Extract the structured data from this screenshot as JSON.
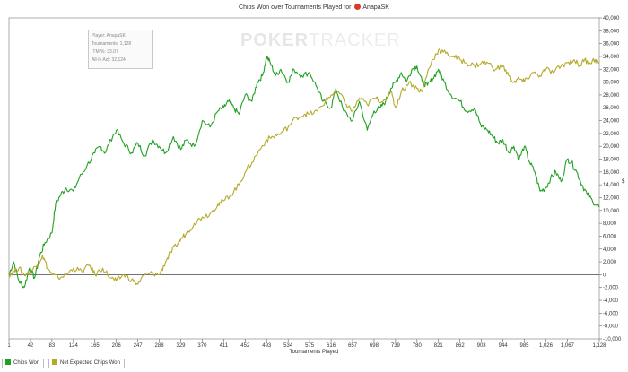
{
  "title_prefix": "Chips Won over Tournaments Played for",
  "player_name": "AnapaSK",
  "watermark": {
    "bold": "POKER",
    "light": "TRACKER"
  },
  "info": {
    "player": "Player: AnapaSK",
    "tournaments": "Tournaments: 1,128",
    "itm": "ITM %: 33.07",
    "allin": "All-In Adj: 32,124"
  },
  "legend": {
    "chips_won": "Chips Won",
    "net_expected": "Net Expected Chips Won"
  },
  "colors": {
    "chips_won": "#22a023",
    "net_expected": "#b5a92b",
    "zero_line": "#444444"
  },
  "chart_data": {
    "type": "line",
    "xlabel": "Tournaments Played",
    "ylabel": "$",
    "xlim": [
      1,
      1128
    ],
    "ylim": [
      -10000,
      40000
    ],
    "x_ticks": [
      1,
      42,
      83,
      124,
      165,
      206,
      247,
      288,
      329,
      370,
      411,
      452,
      493,
      534,
      575,
      616,
      657,
      698,
      739,
      780,
      821,
      862,
      903,
      944,
      985,
      1026,
      1067,
      1128
    ],
    "x_tick_labels": [
      "1",
      "42",
      "83",
      "124",
      "165",
      "206",
      "247",
      "288",
      "329",
      "370",
      "411",
      "452",
      "493",
      "534",
      "575",
      "616",
      "657",
      "698",
      "739",
      "780",
      "821",
      "862",
      "903",
      "944",
      "985",
      "1,026",
      "1,067",
      "1,128"
    ],
    "y_ticks": [
      -10000,
      -8000,
      -6000,
      -4000,
      -2000,
      0,
      2000,
      4000,
      6000,
      8000,
      10000,
      12000,
      14000,
      16000,
      18000,
      20000,
      22000,
      24000,
      26000,
      28000,
      30000,
      32000,
      34000,
      36000,
      38000,
      40000
    ],
    "y_tick_labels": [
      "-10,000",
      "-8,000",
      "-6,000",
      "-4,000",
      "-2,000",
      "0",
      "2,000",
      "4,000",
      "6,000",
      "8,000",
      "10,000",
      "12,000",
      "14,000",
      "16,000",
      "18,000",
      "20,000",
      "22,000",
      "24,000",
      "26,000",
      "28,000",
      "30,000",
      "32,000",
      "34,000",
      "36,000",
      "38,000",
      "40,000"
    ],
    "series": [
      {
        "name": "Chips Won",
        "color": "#22a023",
        "points": [
          [
            1,
            0
          ],
          [
            10,
            2000
          ],
          [
            20,
            -1000
          ],
          [
            30,
            -2000
          ],
          [
            40,
            1000
          ],
          [
            50,
            -500
          ],
          [
            60,
            3000
          ],
          [
            70,
            5000
          ],
          [
            83,
            6500
          ],
          [
            90,
            11000
          ],
          [
            100,
            12500
          ],
          [
            110,
            13500
          ],
          [
            124,
            13000
          ],
          [
            135,
            15000
          ],
          [
            150,
            17000
          ],
          [
            165,
            19000
          ],
          [
            175,
            20000
          ],
          [
            185,
            19000
          ],
          [
            195,
            21000
          ],
          [
            206,
            22500
          ],
          [
            220,
            20500
          ],
          [
            235,
            19000
          ],
          [
            247,
            20500
          ],
          [
            260,
            18500
          ],
          [
            275,
            21000
          ],
          [
            288,
            20000
          ],
          [
            300,
            19000
          ],
          [
            315,
            21500
          ],
          [
            329,
            19500
          ],
          [
            340,
            21000
          ],
          [
            355,
            20000
          ],
          [
            370,
            24000
          ],
          [
            385,
            23000
          ],
          [
            400,
            25500
          ],
          [
            411,
            26000
          ],
          [
            420,
            27000
          ],
          [
            430,
            26000
          ],
          [
            440,
            25000
          ],
          [
            452,
            28000
          ],
          [
            465,
            27000
          ],
          [
            475,
            30000
          ],
          [
            485,
            31000
          ],
          [
            493,
            34000
          ],
          [
            500,
            33000
          ],
          [
            510,
            31000
          ],
          [
            520,
            32000
          ],
          [
            534,
            30000
          ],
          [
            545,
            32000
          ],
          [
            560,
            31000
          ],
          [
            575,
            31500
          ],
          [
            590,
            29000
          ],
          [
            600,
            27000
          ],
          [
            616,
            26000
          ],
          [
            625,
            29000
          ],
          [
            640,
            25500
          ],
          [
            657,
            24000
          ],
          [
            670,
            27000
          ],
          [
            685,
            22500
          ],
          [
            698,
            25500
          ],
          [
            710,
            26000
          ],
          [
            720,
            27000
          ],
          [
            730,
            29000
          ],
          [
            739,
            30000
          ],
          [
            750,
            31500
          ],
          [
            760,
            30000
          ],
          [
            770,
            32000
          ],
          [
            780,
            32500
          ],
          [
            790,
            30000
          ],
          [
            800,
            29500
          ],
          [
            810,
            30500
          ],
          [
            821,
            32000
          ],
          [
            832,
            30000
          ],
          [
            845,
            28000
          ],
          [
            862,
            27000
          ],
          [
            875,
            25500
          ],
          [
            890,
            26000
          ],
          [
            903,
            23000
          ],
          [
            915,
            22500
          ],
          [
            925,
            21500
          ],
          [
            935,
            20500
          ],
          [
            944,
            21000
          ],
          [
            955,
            19000
          ],
          [
            965,
            20000
          ],
          [
            975,
            18000
          ],
          [
            985,
            20000
          ],
          [
            995,
            17500
          ],
          [
            1005,
            16000
          ],
          [
            1015,
            13000
          ],
          [
            1026,
            13500
          ],
          [
            1035,
            15000
          ],
          [
            1045,
            16000
          ],
          [
            1055,
            14500
          ],
          [
            1067,
            18000
          ],
          [
            1075,
            17500
          ],
          [
            1085,
            16000
          ],
          [
            1095,
            14000
          ],
          [
            1105,
            12500
          ],
          [
            1115,
            11500
          ],
          [
            1128,
            10500
          ]
        ]
      },
      {
        "name": "Net Expected Chips Won",
        "color": "#b5a92b",
        "points": [
          [
            1,
            0
          ],
          [
            10,
            500
          ],
          [
            20,
            1000
          ],
          [
            30,
            0
          ],
          [
            42,
            500
          ],
          [
            55,
            1500
          ],
          [
            65,
            3000
          ],
          [
            75,
            1000
          ],
          [
            83,
            0
          ],
          [
            95,
            -500
          ],
          [
            110,
            0
          ],
          [
            124,
            1000
          ],
          [
            140,
            500
          ],
          [
            155,
            1500
          ],
          [
            165,
            0
          ],
          [
            180,
            1000
          ],
          [
            195,
            -500
          ],
          [
            206,
            -1000
          ],
          [
            220,
            0
          ],
          [
            235,
            -800
          ],
          [
            247,
            -1500
          ],
          [
            260,
            0
          ],
          [
            275,
            200
          ],
          [
            288,
            0
          ],
          [
            300,
            2000
          ],
          [
            310,
            3500
          ],
          [
            320,
            4500
          ],
          [
            329,
            5500
          ],
          [
            340,
            6500
          ],
          [
            355,
            8000
          ],
          [
            370,
            9000
          ],
          [
            385,
            9500
          ],
          [
            400,
            11000
          ],
          [
            411,
            11500
          ],
          [
            425,
            12500
          ],
          [
            440,
            14000
          ],
          [
            452,
            16000
          ],
          [
            465,
            17500
          ],
          [
            480,
            19500
          ],
          [
            493,
            21000
          ],
          [
            505,
            21500
          ],
          [
            520,
            22000
          ],
          [
            534,
            23000
          ],
          [
            550,
            24500
          ],
          [
            565,
            25000
          ],
          [
            575,
            25000
          ],
          [
            590,
            25500
          ],
          [
            605,
            27000
          ],
          [
            616,
            28000
          ],
          [
            630,
            28500
          ],
          [
            645,
            26500
          ],
          [
            657,
            25500
          ],
          [
            670,
            27500
          ],
          [
            685,
            26500
          ],
          [
            698,
            27500
          ],
          [
            715,
            27000
          ],
          [
            730,
            28500
          ],
          [
            739,
            26000
          ],
          [
            750,
            28500
          ],
          [
            765,
            30000
          ],
          [
            780,
            29000
          ],
          [
            790,
            28500
          ],
          [
            800,
            31500
          ],
          [
            810,
            33500
          ],
          [
            821,
            35000
          ],
          [
            835,
            34500
          ],
          [
            850,
            34000
          ],
          [
            862,
            33500
          ],
          [
            875,
            33000
          ],
          [
            890,
            32500
          ],
          [
            903,
            33000
          ],
          [
            915,
            33000
          ],
          [
            930,
            32000
          ],
          [
            944,
            32500
          ],
          [
            955,
            31000
          ],
          [
            965,
            30000
          ],
          [
            975,
            30500
          ],
          [
            985,
            30000
          ],
          [
            1000,
            31500
          ],
          [
            1015,
            31000
          ],
          [
            1026,
            32000
          ],
          [
            1040,
            31500
          ],
          [
            1055,
            32500
          ],
          [
            1067,
            33000
          ],
          [
            1080,
            33500
          ],
          [
            1090,
            32500
          ],
          [
            1100,
            33500
          ],
          [
            1110,
            33000
          ],
          [
            1120,
            33500
          ],
          [
            1128,
            33000
          ]
        ]
      }
    ]
  }
}
